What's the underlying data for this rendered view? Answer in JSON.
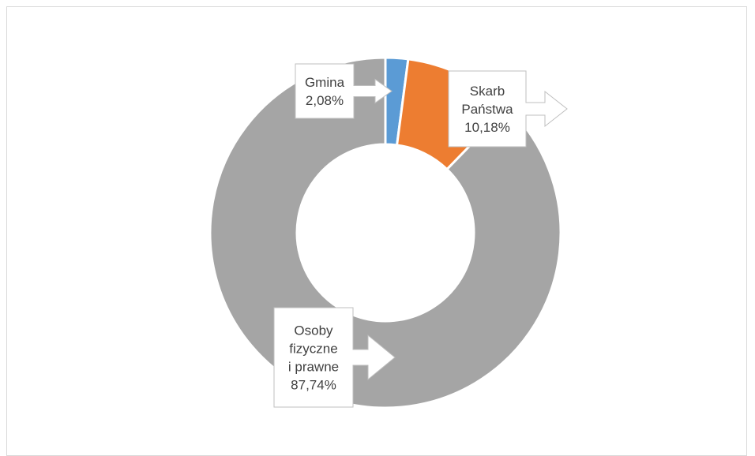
{
  "chart_data": {
    "type": "pie",
    "variant": "doughnut",
    "title": "",
    "categories": [
      "Gmina",
      "Skarb Państwa",
      "Osoby fizyczne i prawne"
    ],
    "values": [
      2.08,
      10.18,
      87.74
    ],
    "unit": "%",
    "colors": [
      "#5b9bd5",
      "#ed7d31",
      "#a5a5a5"
    ],
    "labels": [
      {
        "lines": [
          "Gmina",
          "2,08%"
        ]
      },
      {
        "lines": [
          "Skarb",
          "Państwa",
          "10,18%"
        ]
      },
      {
        "lines": [
          "Osoby",
          "fizyczne",
          "i prawne",
          "87,74%"
        ]
      }
    ]
  }
}
